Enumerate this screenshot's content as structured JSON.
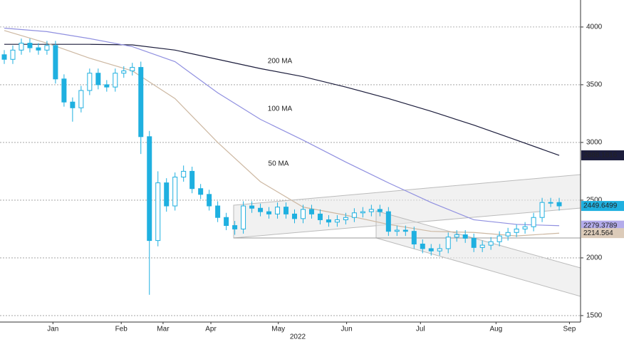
{
  "chart_data": {
    "type": "candlestick",
    "x": [
      0,
      1,
      2,
      3,
      4,
      5,
      6,
      7,
      8,
      9,
      10,
      11,
      12,
      13,
      14,
      15,
      16,
      17,
      18,
      19,
      20,
      21,
      22,
      23,
      24,
      25,
      26,
      27,
      28,
      29,
      30,
      31,
      32,
      33,
      34,
      35,
      36,
      37,
      38,
      39,
      40,
      41,
      42,
      43,
      44,
      45,
      46,
      47,
      48,
      49,
      50,
      51,
      52,
      53,
      54,
      55,
      56,
      57,
      58,
      59,
      60,
      61,
      62,
      63,
      64,
      65
    ],
    "open": [
      3760,
      3720,
      3800,
      3860,
      3820,
      3800,
      3840,
      3550,
      3350,
      3300,
      3450,
      3600,
      3500,
      3480,
      3600,
      3620,
      3650,
      3050,
      2150,
      2650,
      2450,
      2700,
      2750,
      2600,
      2550,
      2450,
      2350,
      2280,
      2250,
      2450,
      2430,
      2400,
      2380,
      2440,
      2380,
      2340,
      2420,
      2380,
      2330,
      2310,
      2330,
      2350,
      2390,
      2400,
      2420,
      2400,
      2230,
      2240,
      2230,
      2120,
      2080,
      2060,
      2080,
      2180,
      2200,
      2170,
      2090,
      2110,
      2140,
      2190,
      2220,
      2250,
      2270,
      2350,
      2480,
      2480
    ],
    "high": [
      3800,
      3840,
      3900,
      3900,
      3860,
      3880,
      3880,
      3590,
      3390,
      3490,
      3640,
      3640,
      3540,
      3640,
      3660,
      3690,
      3700,
      3100,
      2750,
      2690,
      2740,
      2800,
      2790,
      2640,
      2590,
      2490,
      2390,
      2320,
      2490,
      2490,
      2470,
      2440,
      2480,
      2480,
      2420,
      2460,
      2460,
      2420,
      2370,
      2370,
      2390,
      2430,
      2440,
      2460,
      2460,
      2440,
      2280,
      2280,
      2270,
      2160,
      2120,
      2120,
      2220,
      2240,
      2240,
      2210,
      2150,
      2180,
      2230,
      2260,
      2290,
      2310,
      2390,
      2520,
      2520,
      2520
    ],
    "low": [
      3680,
      3680,
      3760,
      3780,
      3760,
      3760,
      3510,
      3310,
      3180,
      3260,
      3410,
      3460,
      3440,
      3440,
      3560,
      3580,
      2900,
      1680,
      2100,
      2400,
      2410,
      2660,
      2560,
      2510,
      2410,
      2310,
      2240,
      2200,
      2210,
      2390,
      2360,
      2340,
      2340,
      2340,
      2300,
      2300,
      2340,
      2290,
      2270,
      2270,
      2290,
      2310,
      2350,
      2360,
      2360,
      2190,
      2190,
      2190,
      2080,
      2040,
      2020,
      2020,
      2040,
      2140,
      2130,
      2050,
      2050,
      2070,
      2100,
      2150,
      2180,
      2210,
      2230,
      2310,
      2440,
      2410
    ],
    "close": [
      3720,
      3800,
      3860,
      3820,
      3800,
      3840,
      3550,
      3350,
      3300,
      3450,
      3600,
      3500,
      3480,
      3600,
      3620,
      3650,
      3050,
      2150,
      2650,
      2450,
      2700,
      2750,
      2600,
      2550,
      2450,
      2350,
      2280,
      2250,
      2450,
      2430,
      2400,
      2380,
      2440,
      2380,
      2340,
      2420,
      2380,
      2330,
      2310,
      2330,
      2350,
      2390,
      2400,
      2420,
      2400,
      2230,
      2240,
      2230,
      2120,
      2080,
      2060,
      2080,
      2180,
      2200,
      2170,
      2090,
      2110,
      2140,
      2190,
      2220,
      2250,
      2270,
      2350,
      2480,
      2480,
      2450
    ],
    "color": "#1fb0e0",
    "last_value": 2449.6499,
    "series": [
      {
        "name": "200 MA",
        "color": "#1c1d3c",
        "last_value": 2888.1816,
        "x": [
          0,
          5,
          10,
          15,
          20,
          25,
          30,
          35,
          40,
          45,
          50,
          55,
          60,
          65
        ],
        "values": [
          3850,
          3850,
          3850,
          3845,
          3800,
          3720,
          3640,
          3570,
          3480,
          3380,
          3270,
          3150,
          3020,
          2888
        ]
      },
      {
        "name": "100 MA",
        "color": "#9090e0",
        "last_value": 2279.3789,
        "x": [
          0,
          5,
          10,
          15,
          20,
          25,
          30,
          35,
          40,
          45,
          50,
          55,
          60,
          65
        ],
        "values": [
          3990,
          3960,
          3900,
          3830,
          3700,
          3430,
          3200,
          3020,
          2830,
          2650,
          2480,
          2330,
          2290,
          2279
        ]
      },
      {
        "name": "50 MA",
        "color": "#cdb8a2",
        "last_value": 2214.564,
        "x": [
          0,
          5,
          10,
          15,
          20,
          25,
          30,
          35,
          40,
          45,
          50,
          55,
          60,
          65
        ],
        "values": [
          3970,
          3860,
          3730,
          3620,
          3380,
          3000,
          2660,
          2440,
          2370,
          2290,
          2230,
          2220,
          2190,
          2214
        ]
      }
    ],
    "xlim": [
      -0.5,
      67.5
    ],
    "xticks": [
      {
        "value": 5.7,
        "label": "Jan"
      },
      {
        "value": 13.7,
        "label": "Feb"
      },
      {
        "value": 18.6,
        "label": "Mar"
      },
      {
        "value": 24.2,
        "label": "Apr"
      },
      {
        "value": 32.1,
        "label": "May"
      },
      {
        "value": 40.1,
        "label": "Jun"
      },
      {
        "value": 48.75,
        "label": "Jul"
      },
      {
        "value": 57.6,
        "label": "Aug"
      },
      {
        "value": 66.2,
        "label": "Sep"
      }
    ],
    "x_label": "2022",
    "ylim": [
      1444,
      4234
    ],
    "yticks": [
      1500,
      2000,
      2500,
      3000,
      3500,
      4000
    ],
    "grid": true
  }
}
